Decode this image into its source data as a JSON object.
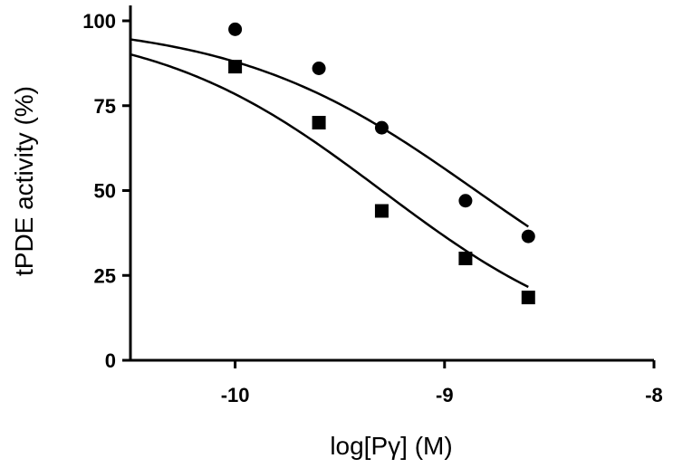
{
  "chart_data": {
    "type": "scatter",
    "xlabel": "log[Pγ] (M)",
    "ylabel": "tPDE activity (%)",
    "xlim": [
      -10.5,
      -8
    ],
    "ylim": [
      0,
      100
    ],
    "x_ticks": [
      -10,
      -9,
      -8
    ],
    "x_tick_labels": [
      "-10",
      "-9",
      "-8"
    ],
    "y_ticks": [
      0,
      25,
      50,
      75,
      100
    ],
    "y_tick_labels": [
      "0",
      "25",
      "50",
      "75",
      "100"
    ],
    "grid": false,
    "series": [
      {
        "marker": "circle",
        "x": [
          -10.0,
          -9.6,
          -9.3,
          -8.9,
          -8.6
        ],
        "values": [
          97.5,
          86,
          68.5,
          47,
          36.5
        ],
        "fit": {
          "model": "logistic",
          "top": 100,
          "bottom": 0,
          "logIC50": -8.85,
          "hill": 0.75
        }
      },
      {
        "marker": "square",
        "x": [
          -10.0,
          -9.6,
          -9.3,
          -8.9,
          -8.6
        ],
        "values": [
          86.5,
          70,
          44,
          30,
          18.5
        ],
        "fit": {
          "model": "logistic",
          "top": 100,
          "bottom": 0,
          "logIC50": -9.3,
          "hill": 0.8
        }
      }
    ],
    "fit_range": [
      -10.5,
      -8.6
    ]
  }
}
